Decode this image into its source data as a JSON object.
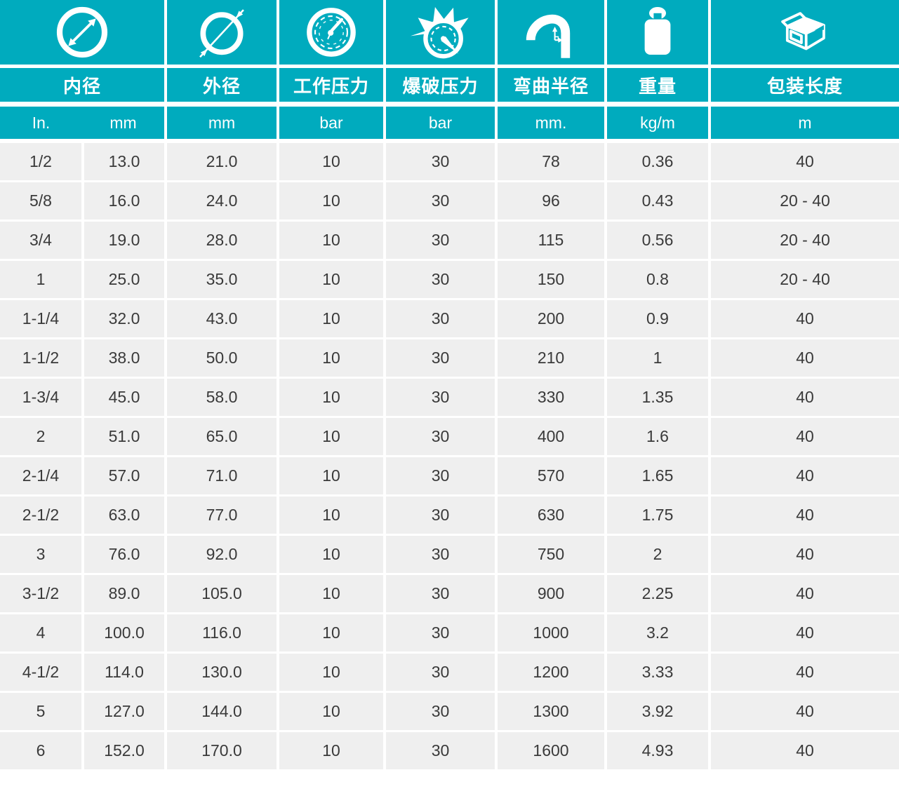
{
  "colors": {
    "teal": "#00ABBE",
    "row_bg": "#EFEFEF",
    "header_text": "#FFFFFF",
    "cell_text": "#3A3A3A",
    "gap": "#FFFFFF"
  },
  "columns": [
    {
      "icon": "inner-diameter-icon",
      "label": "内径",
      "units": [
        "In.",
        "mm"
      ]
    },
    {
      "icon": "outer-diameter-icon",
      "label": "外径",
      "unit": "mm"
    },
    {
      "icon": "working-pressure-icon",
      "label": "工作压力",
      "unit": "bar"
    },
    {
      "icon": "burst-pressure-icon",
      "label": "爆破压力",
      "unit": "bar"
    },
    {
      "icon": "bend-radius-icon",
      "label": "弯曲半径",
      "unit": "mm."
    },
    {
      "icon": "weight-icon",
      "label": "重量",
      "unit": "kg/m"
    },
    {
      "icon": "packing-length-icon",
      "label": "包装长度",
      "unit": "m"
    }
  ],
  "rows": [
    [
      "1/2",
      "13.0",
      "21.0",
      "10",
      "30",
      "78",
      "0.36",
      "40"
    ],
    [
      "5/8",
      "16.0",
      "24.0",
      "10",
      "30",
      "96",
      "0.43",
      "20 - 40"
    ],
    [
      "3/4",
      "19.0",
      "28.0",
      "10",
      "30",
      "115",
      "0.56",
      "20 - 40"
    ],
    [
      "1",
      "25.0",
      "35.0",
      "10",
      "30",
      "150",
      "0.8",
      "20 - 40"
    ],
    [
      "1-1/4",
      "32.0",
      "43.0",
      "10",
      "30",
      "200",
      "0.9",
      "40"
    ],
    [
      "1-1/2",
      "38.0",
      "50.0",
      "10",
      "30",
      "210",
      "1",
      "40"
    ],
    [
      "1-3/4",
      "45.0",
      "58.0",
      "10",
      "30",
      "330",
      "1.35",
      "40"
    ],
    [
      "2",
      "51.0",
      "65.0",
      "10",
      "30",
      "400",
      "1.6",
      "40"
    ],
    [
      "2-1/4",
      "57.0",
      "71.0",
      "10",
      "30",
      "570",
      "1.65",
      "40"
    ],
    [
      "2-1/2",
      "63.0",
      "77.0",
      "10",
      "30",
      "630",
      "1.75",
      "40"
    ],
    [
      "3",
      "76.0",
      "92.0",
      "10",
      "30",
      "750",
      "2",
      "40"
    ],
    [
      "3-1/2",
      "89.0",
      "105.0",
      "10",
      "30",
      "900",
      "2.25",
      "40"
    ],
    [
      "4",
      "100.0",
      "116.0",
      "10",
      "30",
      "1000",
      "3.2",
      "40"
    ],
    [
      "4-1/2",
      "114.0",
      "130.0",
      "10",
      "30",
      "1200",
      "3.33",
      "40"
    ],
    [
      "5",
      "127.0",
      "144.0",
      "10",
      "30",
      "1300",
      "3.92",
      "40"
    ],
    [
      "6",
      "152.0",
      "170.0",
      "10",
      "30",
      "1600",
      "4.93",
      "40"
    ]
  ],
  "chart_data": {
    "type": "table",
    "title": "",
    "column_headers": [
      "内径 In.",
      "内径 mm",
      "外径 mm",
      "工作压力 bar",
      "爆破压力 bar",
      "弯曲半径 mm.",
      "重量 kg/m",
      "包装长度 m"
    ],
    "rows_ref": "rows"
  }
}
